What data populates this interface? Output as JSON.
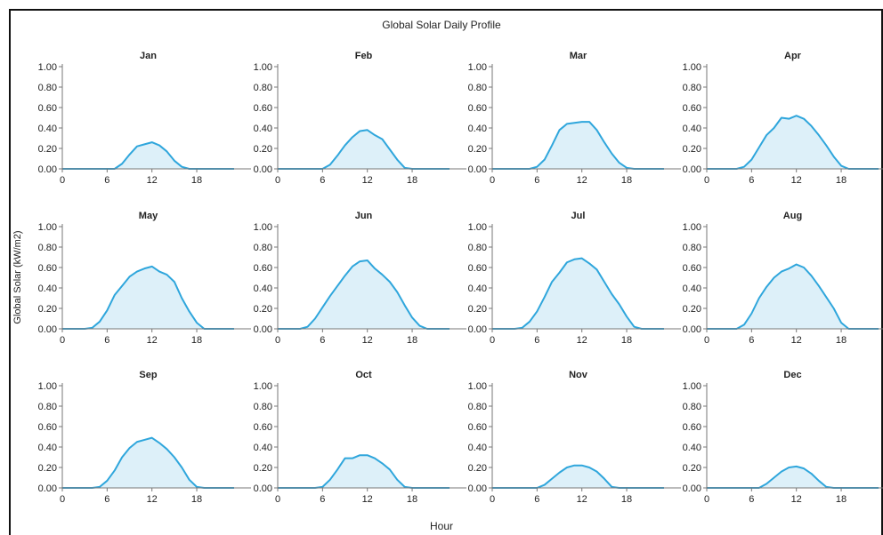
{
  "chart_data": {
    "type": "area",
    "title": "Global Solar Daily Profile",
    "xlabel": "Hour",
    "ylabel": "Global Solar (kW/m2)",
    "xlim": [
      0,
      23
    ],
    "ylim": [
      0,
      1
    ],
    "x_ticks": [
      0,
      6,
      12,
      18
    ],
    "y_ticks": [
      0,
      0.2,
      0.4,
      0.6,
      0.8,
      1.0
    ],
    "line_color": "#2fa6dc",
    "fill_color": "#ddf0f9",
    "panels": [
      {
        "month": "Jan",
        "values": [
          0,
          0,
          0,
          0,
          0,
          0,
          0,
          0,
          0.05,
          0.14,
          0.22,
          0.24,
          0.26,
          0.23,
          0.17,
          0.08,
          0.02,
          0,
          0,
          0,
          0,
          0,
          0,
          0
        ]
      },
      {
        "month": "Feb",
        "values": [
          0,
          0,
          0,
          0,
          0,
          0,
          0,
          0.04,
          0.13,
          0.23,
          0.31,
          0.37,
          0.38,
          0.33,
          0.29,
          0.19,
          0.09,
          0.01,
          0,
          0,
          0,
          0,
          0,
          0
        ]
      },
      {
        "month": "Mar",
        "values": [
          0,
          0,
          0,
          0,
          0,
          0,
          0.02,
          0.09,
          0.23,
          0.38,
          0.44,
          0.45,
          0.46,
          0.46,
          0.38,
          0.26,
          0.15,
          0.06,
          0.01,
          0,
          0,
          0,
          0,
          0
        ]
      },
      {
        "month": "Apr",
        "values": [
          0,
          0,
          0,
          0,
          0,
          0.02,
          0.09,
          0.21,
          0.33,
          0.4,
          0.5,
          0.49,
          0.52,
          0.49,
          0.42,
          0.33,
          0.23,
          0.12,
          0.03,
          0,
          0,
          0,
          0,
          0
        ]
      },
      {
        "month": "May",
        "values": [
          0,
          0,
          0,
          0,
          0.01,
          0.07,
          0.18,
          0.33,
          0.42,
          0.51,
          0.56,
          0.59,
          0.61,
          0.56,
          0.53,
          0.46,
          0.3,
          0.17,
          0.06,
          0,
          0,
          0,
          0,
          0
        ]
      },
      {
        "month": "Jun",
        "values": [
          0,
          0,
          0,
          0,
          0.02,
          0.1,
          0.21,
          0.32,
          0.42,
          0.52,
          0.61,
          0.66,
          0.67,
          0.59,
          0.53,
          0.46,
          0.36,
          0.23,
          0.11,
          0.03,
          0,
          0,
          0,
          0
        ]
      },
      {
        "month": "Jul",
        "values": [
          0,
          0,
          0,
          0,
          0.01,
          0.07,
          0.17,
          0.31,
          0.46,
          0.55,
          0.65,
          0.68,
          0.69,
          0.64,
          0.58,
          0.46,
          0.34,
          0.24,
          0.12,
          0.02,
          0,
          0,
          0,
          0
        ]
      },
      {
        "month": "Aug",
        "values": [
          0,
          0,
          0,
          0,
          0,
          0.04,
          0.15,
          0.3,
          0.41,
          0.5,
          0.56,
          0.59,
          0.63,
          0.6,
          0.52,
          0.42,
          0.31,
          0.2,
          0.06,
          0,
          0,
          0,
          0,
          0
        ]
      },
      {
        "month": "Sep",
        "values": [
          0,
          0,
          0,
          0,
          0,
          0.01,
          0.07,
          0.17,
          0.3,
          0.39,
          0.45,
          0.47,
          0.49,
          0.44,
          0.38,
          0.3,
          0.2,
          0.08,
          0.01,
          0,
          0,
          0,
          0,
          0
        ]
      },
      {
        "month": "Oct",
        "values": [
          0,
          0,
          0,
          0,
          0,
          0,
          0.01,
          0.08,
          0.18,
          0.29,
          0.29,
          0.32,
          0.32,
          0.29,
          0.24,
          0.18,
          0.08,
          0.01,
          0,
          0,
          0,
          0,
          0,
          0
        ]
      },
      {
        "month": "Nov",
        "values": [
          0,
          0,
          0,
          0,
          0,
          0,
          0,
          0.03,
          0.09,
          0.15,
          0.2,
          0.22,
          0.22,
          0.2,
          0.16,
          0.09,
          0.01,
          0,
          0,
          0,
          0,
          0,
          0,
          0
        ]
      },
      {
        "month": "Dec",
        "values": [
          0,
          0,
          0,
          0,
          0,
          0,
          0,
          0,
          0.04,
          0.1,
          0.16,
          0.2,
          0.21,
          0.19,
          0.14,
          0.07,
          0.01,
          0,
          0,
          0,
          0,
          0,
          0,
          0
        ]
      }
    ]
  }
}
